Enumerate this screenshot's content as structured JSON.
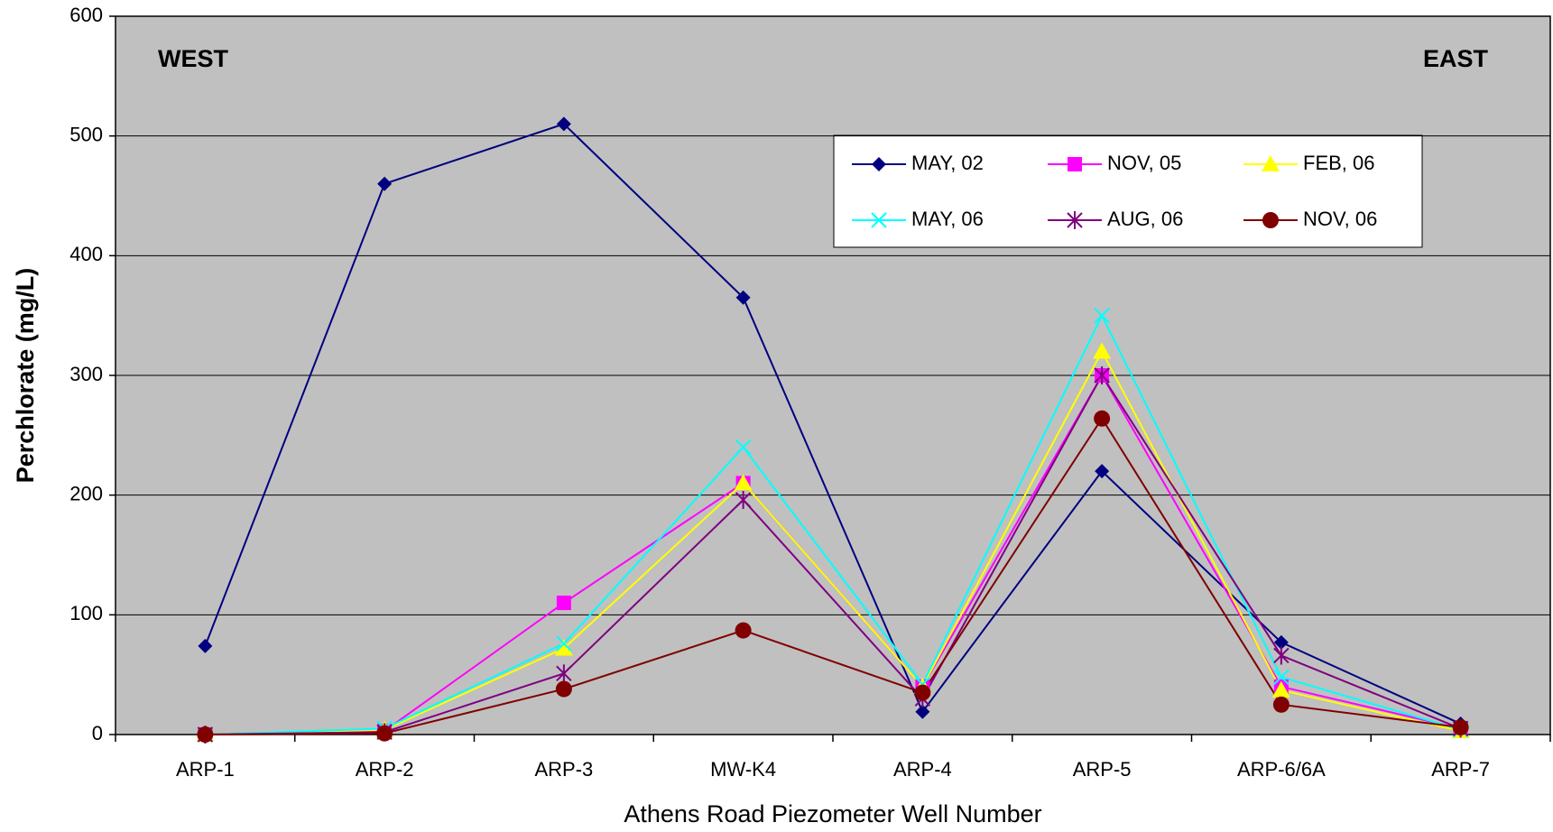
{
  "chart_data": {
    "type": "line",
    "x_label": "Athens Road Piezometer Well Number",
    "y_label": "Perchlorate (mg/L)",
    "annotations": [
      "WEST",
      "EAST"
    ],
    "categories": [
      "ARP-1",
      "ARP-2",
      "ARP-3",
      "MW-K4",
      "ARP-4",
      "ARP-5",
      "ARP-6/6A",
      "ARP-7"
    ],
    "ylim": [
      0,
      600
    ],
    "yticks": [
      0,
      100,
      200,
      300,
      400,
      500,
      600
    ],
    "grid": true,
    "series": [
      {
        "name": "MAY, 02",
        "color": "#000080",
        "marker": "diamond",
        "values": [
          74,
          460,
          510,
          365,
          19,
          220,
          77,
          9
        ]
      },
      {
        "name": "NOV, 05",
        "color": "#ff00ff",
        "marker": "square",
        "values": [
          0,
          3,
          110,
          210,
          40,
          300,
          40,
          5
        ]
      },
      {
        "name": "FEB, 06",
        "color": "#ffff00",
        "marker": "triangle",
        "values": [
          0,
          4,
          72,
          210,
          40,
          320,
          37,
          3
        ]
      },
      {
        "name": "MAY, 06",
        "color": "#00ffff",
        "marker": "x",
        "values": [
          0,
          5,
          76,
          240,
          42,
          350,
          48,
          4
        ]
      },
      {
        "name": "AUG, 06",
        "color": "#800080",
        "marker": "star",
        "values": [
          0,
          2,
          51,
          196,
          30,
          300,
          66,
          5
        ]
      },
      {
        "name": "NOV, 06",
        "color": "#800000",
        "marker": "circle",
        "values": [
          0,
          1,
          38,
          87,
          35,
          264,
          25,
          6
        ]
      }
    ]
  }
}
